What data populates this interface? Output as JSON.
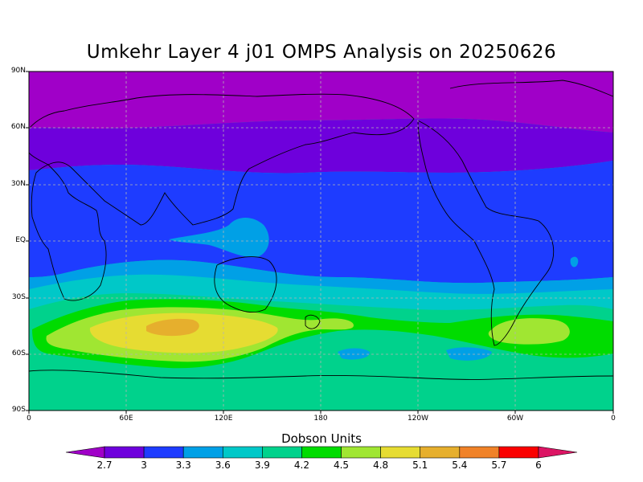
{
  "title": "Umkehr Layer 4 j01 OMPS Analysis on 20250626",
  "axes": {
    "y_ticks": [
      "90N",
      "60N",
      "30N",
      "EQ",
      "30S",
      "60S",
      "90S"
    ],
    "x_ticks": [
      "0",
      "60E",
      "120E",
      "180",
      "120W",
      "60W",
      "0"
    ]
  },
  "colorbar": {
    "title": "Dobson Units",
    "labels": [
      "2.7",
      "3",
      "3.3",
      "3.6",
      "3.9",
      "4.2",
      "4.5",
      "4.8",
      "5.1",
      "5.4",
      "5.7",
      "6"
    ],
    "colors": [
      "#a000c8",
      "#6e00dc",
      "#1e3cff",
      "#00a0e6",
      "#00c8c8",
      "#00d28c",
      "#00dc00",
      "#a0e632",
      "#e6dc32",
      "#e6af2d",
      "#f08228",
      "#fa0000",
      "#dc1464"
    ]
  },
  "map": {
    "projection": "cylindrical",
    "lon_range": [
      0,
      360
    ],
    "lat_range": [
      -90,
      90
    ],
    "grid": true,
    "units": "Dobson Units"
  }
}
